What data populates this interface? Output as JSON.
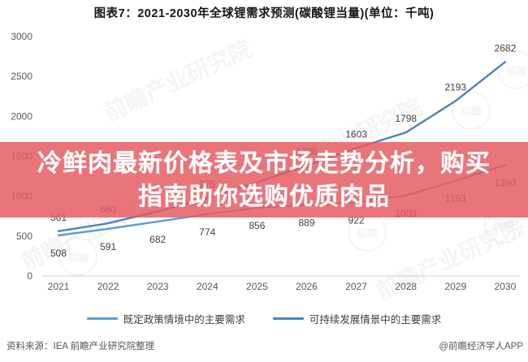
{
  "title": "图表7：2021-2030年全球锂需求预测(碳酸锂当量)(单位：千吨)",
  "overlay_banner": {
    "line1": "冷鲜肉最新价格表及市场走势分析，购买",
    "line2": "指南助你选购优质肉品",
    "background_color": "#e55a61",
    "background_opacity": 0.84,
    "text_color": "#ffffff"
  },
  "chart_data": {
    "type": "line",
    "title": "图表7：2021-2030年全球锂需求预测(碳酸锂当量)(单位：千吨)",
    "unit": "千吨",
    "xlabel": "",
    "ylabel": "",
    "categories": [
      "2021",
      "2022",
      "2023",
      "2024",
      "2025",
      "2026",
      "2027",
      "2028",
      "2029",
      "2030"
    ],
    "yticks": [
      0,
      500,
      1000,
      1500,
      2000,
      2500,
      3000
    ],
    "ylim": [
      0,
      3000
    ],
    "grid": false,
    "legend_position": "bottom",
    "series": [
      {
        "name": "既定政策情境中的主要需求",
        "color": "#5b9bd5",
        "label_side": "below",
        "values": [
          508,
          591,
          682,
          774,
          856,
          889,
          922,
          1009,
          1193,
          1390
        ],
        "labels": [
          "508",
          "591",
          "682",
          "774",
          "856",
          "889",
          "922",
          "1009",
          "1193",
          "1390"
        ]
      },
      {
        "name": "可持续发展情景中的主要需求",
        "color": "#4d82bd",
        "label_side": "above",
        "values": [
          561,
          660,
          810,
          975,
          1170,
          1386,
          1603,
          1798,
          2193,
          2682
        ],
        "labels": [
          "561",
          "660",
          null,
          "975",
          null,
          "1386",
          "1603",
          "1798",
          "2193",
          "2682"
        ],
        "labels_hidden_by_banner": [
          "2023",
          "2025"
        ]
      }
    ]
  },
  "footer": {
    "source": "资料来源：IEA 前瞻产业研究院整理",
    "credit": "@前瞻经济学人APP"
  },
  "watermark": {
    "diag_text": "前瞻产业研究院",
    "logo_text": "前瞻"
  }
}
